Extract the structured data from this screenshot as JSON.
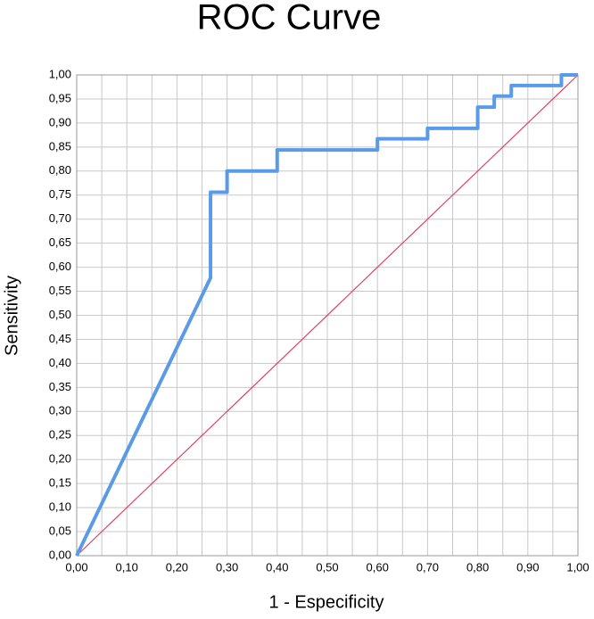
{
  "chart_data": {
    "type": "line",
    "title": "ROC Curve",
    "x_label": "1 - Especificity",
    "y_label": "Sensitivity",
    "xlim": [
      0,
      1
    ],
    "ylim": [
      0,
      1
    ],
    "xticks": [
      {
        "value": 0,
        "label": "0,00"
      },
      {
        "value": 0.1,
        "label": "0,10"
      },
      {
        "value": 0.2,
        "label": "0,20"
      },
      {
        "value": 0.3,
        "label": "0,30"
      },
      {
        "value": 0.4,
        "label": "0,40"
      },
      {
        "value": 0.5,
        "label": "0,50"
      },
      {
        "value": 0.6,
        "label": "0,60"
      },
      {
        "value": 0.7,
        "label": "0,70"
      },
      {
        "value": 0.8,
        "label": "0,80"
      },
      {
        "value": 0.9,
        "label": "0,90"
      },
      {
        "value": 1,
        "label": "1,00"
      }
    ],
    "xminorticks": [
      0.05,
      0.15,
      0.25,
      0.35,
      0.45,
      0.55,
      0.65,
      0.75,
      0.85,
      0.95
    ],
    "yticks": [
      {
        "value": 0,
        "label": "0,00"
      },
      {
        "value": 0.05,
        "label": "0,05"
      },
      {
        "value": 0.1,
        "label": "0,10"
      },
      {
        "value": 0.15,
        "label": "0,15"
      },
      {
        "value": 0.2,
        "label": "0,20"
      },
      {
        "value": 0.25,
        "label": "0,25"
      },
      {
        "value": 0.3,
        "label": "0,30"
      },
      {
        "value": 0.35,
        "label": "0,35"
      },
      {
        "value": 0.4,
        "label": "0,40"
      },
      {
        "value": 0.45,
        "label": "0,45"
      },
      {
        "value": 0.5,
        "label": "0,50"
      },
      {
        "value": 0.55,
        "label": "0,55"
      },
      {
        "value": 0.6,
        "label": "0,60"
      },
      {
        "value": 0.65,
        "label": "0,65"
      },
      {
        "value": 0.7,
        "label": "0,70"
      },
      {
        "value": 0.75,
        "label": "0,75"
      },
      {
        "value": 0.8,
        "label": "0,80"
      },
      {
        "value": 0.85,
        "label": "0,85"
      },
      {
        "value": 0.9,
        "label": "0,90"
      },
      {
        "value": 0.95,
        "label": "0,95"
      },
      {
        "value": 1,
        "label": "1,00"
      }
    ],
    "grid": true,
    "series": [
      {
        "color": "#5b9be6",
        "width": 4,
        "x": [
          0,
          0.267,
          0.267,
          0.3,
          0.3,
          0.4,
          0.4,
          0.6,
          0.6,
          0.7,
          0.7,
          0.8,
          0.8,
          0.833,
          0.833,
          0.867,
          0.867,
          0.967,
          0.967,
          1
        ],
        "values": [
          0,
          0.578,
          0.756,
          0.756,
          0.8,
          0.8,
          0.844,
          0.844,
          0.867,
          0.867,
          0.889,
          0.889,
          0.933,
          0.933,
          0.956,
          0.956,
          0.978,
          0.978,
          1,
          1
        ]
      },
      {
        "color": "#e0406a",
        "width": 1.2,
        "x": [
          0,
          1
        ],
        "values": [
          0,
          1
        ]
      }
    ]
  }
}
